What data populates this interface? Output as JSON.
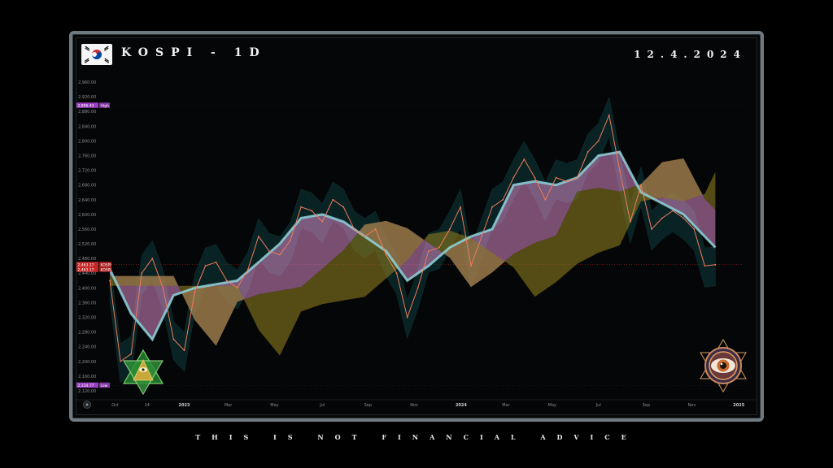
{
  "header": {
    "title": "KOSPI - 1D",
    "date": "12.4.2024"
  },
  "footer": {
    "disclaimer": "THIS IS NOT FINANCIAL ADVICE"
  },
  "colors": {
    "price": "#f07b5a",
    "ma_fast": "#8fd3dc",
    "cloud_bear": "#d88bc9",
    "cloud_bull": "#8b7a1f",
    "channel": "#0e3a3c",
    "high_tag": "#9b3fc0",
    "low_tag": "#9b3fc0",
    "last_tag": "#c62828"
  },
  "icons": [
    "korea-flag-icon",
    "pyramid-eye-icon",
    "eye-emblem-icon"
  ],
  "chart_data": {
    "type": "line",
    "title": "KOSPI - 1D",
    "xlabel": "",
    "ylabel": "",
    "ylim": [
      2100,
      2980
    ],
    "grid": false,
    "x_ticks": [
      "Oct",
      "14",
      "2023",
      "Mar",
      "May",
      "Jul",
      "Sep",
      "Nov",
      "2024",
      "Mar",
      "May",
      "Jul",
      "Sep",
      "Nov",
      "2025"
    ],
    "y_ticks": [
      "2,960.00",
      "2,920.00",
      "2,880.00",
      "2,840.00",
      "2,800.00",
      "2,760.00",
      "2,720.00",
      "2,680.00",
      "2,640.00",
      "2,600.00",
      "2,560.00",
      "2,520.00",
      "2,480.00",
      "2,440.00",
      "2,400.00",
      "2,360.00",
      "2,320.00",
      "2,280.00",
      "2,240.00",
      "2,200.00",
      "2,160.00",
      "2,120.00"
    ],
    "markers": [
      {
        "label": "High",
        "value": "2,896.43",
        "y": 2896.43
      },
      {
        "label": "KOSPI",
        "value": "2,463.17",
        "y": 2463.17
      },
      {
        "label": "KOSPI",
        "value": "2,463.17",
        "y": 2463.17
      },
      {
        "label": "Low",
        "value": "2,134.77",
        "y": 2134.77
      }
    ],
    "series": [
      {
        "name": "KOSPI",
        "x": [
          "2022-09-26",
          "2022-10-10",
          "2022-10-24",
          "2022-11-07",
          "2022-11-21",
          "2022-12-05",
          "2022-12-19",
          "2023-01-02",
          "2023-01-16",
          "2023-01-30",
          "2023-02-13",
          "2023-02-27",
          "2023-03-13",
          "2023-03-27",
          "2023-04-10",
          "2023-04-24",
          "2023-05-08",
          "2023-05-22",
          "2023-06-05",
          "2023-06-19",
          "2023-07-03",
          "2023-07-17",
          "2023-07-31",
          "2023-08-14",
          "2023-08-28",
          "2023-09-11",
          "2023-09-25",
          "2023-10-09",
          "2023-10-23",
          "2023-11-06",
          "2023-11-20",
          "2023-12-04",
          "2023-12-18",
          "2024-01-01",
          "2024-01-15",
          "2024-01-29",
          "2024-02-12",
          "2024-02-26",
          "2024-03-11",
          "2024-03-25",
          "2024-04-08",
          "2024-04-22",
          "2024-05-06",
          "2024-05-20",
          "2024-06-03",
          "2024-06-17",
          "2024-07-01",
          "2024-07-15",
          "2024-07-29",
          "2024-08-12",
          "2024-08-26",
          "2024-09-09",
          "2024-09-23",
          "2024-10-07",
          "2024-10-21",
          "2024-11-04",
          "2024-11-18",
          "2024-12-02"
        ],
        "values": [
          2420,
          2200,
          2220,
          2440,
          2480,
          2400,
          2260,
          2230,
          2390,
          2460,
          2470,
          2420,
          2400,
          2450,
          2540,
          2500,
          2490,
          2530,
          2620,
          2610,
          2580,
          2640,
          2620,
          2560,
          2540,
          2560,
          2490,
          2440,
          2320,
          2400,
          2500,
          2510,
          2560,
          2620,
          2460,
          2540,
          2620,
          2640,
          2700,
          2750,
          2700,
          2640,
          2700,
          2690,
          2700,
          2770,
          2800,
          2870,
          2720,
          2580,
          2680,
          2560,
          2590,
          2610,
          2590,
          2560,
          2460,
          2463
        ]
      },
      {
        "name": "",
        "x": [
          "2022-09-26",
          "2022-10-24",
          "2022-11-21",
          "2022-12-19",
          "2023-01-16",
          "2023-02-13",
          "2023-03-13",
          "2023-04-10",
          "2023-05-08",
          "2023-06-05",
          "2023-07-03",
          "2023-07-31",
          "2023-08-28",
          "2023-09-25",
          "2023-10-23",
          "2023-11-20",
          "2023-12-18",
          "2024-01-15",
          "2024-02-12",
          "2024-03-11",
          "2024-04-08",
          "2024-05-06",
          "2024-06-03",
          "2024-07-01",
          "2024-07-29",
          "2024-08-26",
          "2024-09-23",
          "2024-10-21",
          "2024-11-18",
          "2024-12-02"
        ],
        "values": [
          2450,
          2330,
          2260,
          2380,
          2400,
          2410,
          2420,
          2470,
          2520,
          2590,
          2600,
          2580,
          2540,
          2500,
          2420,
          2460,
          2510,
          2540,
          2560,
          2680,
          2690,
          2680,
          2700,
          2760,
          2770,
          2660,
          2630,
          2600,
          2540,
          2510
        ]
      }
    ]
  }
}
